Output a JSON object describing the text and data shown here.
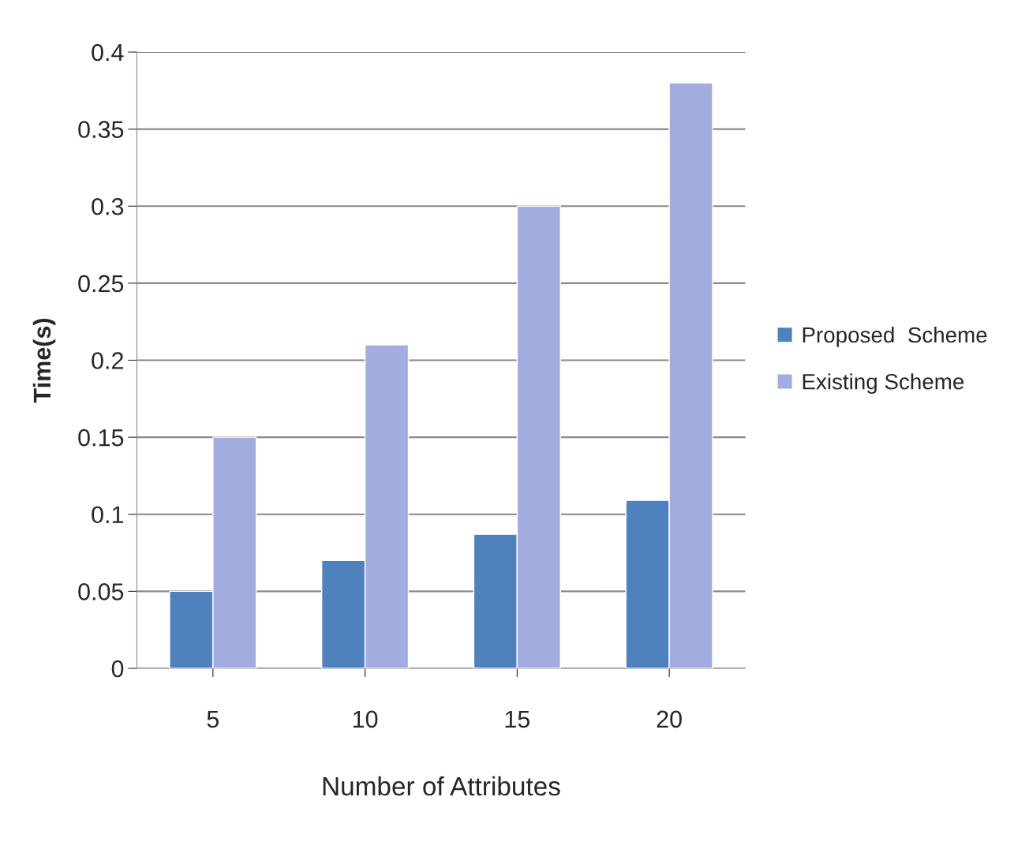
{
  "chart_data": {
    "type": "bar",
    "xlabel": "Number of Attributes",
    "ylabel": "Time(s)",
    "categories": [
      "5",
      "10",
      "15",
      "20"
    ],
    "series": [
      {
        "name": "Proposed  Scheme",
        "color": "#4f81bd",
        "values": [
          0.05,
          0.07,
          0.087,
          0.109
        ]
      },
      {
        "name": "Existing Scheme",
        "color": "#a3acdf",
        "values": [
          0.15,
          0.21,
          0.3,
          0.38
        ]
      }
    ],
    "ylim": [
      0,
      0.4
    ],
    "yticks": [
      0,
      0.05,
      0.1,
      0.15,
      0.2,
      0.25,
      0.3,
      0.35,
      0.4
    ],
    "grid": "y",
    "legend": "right"
  }
}
